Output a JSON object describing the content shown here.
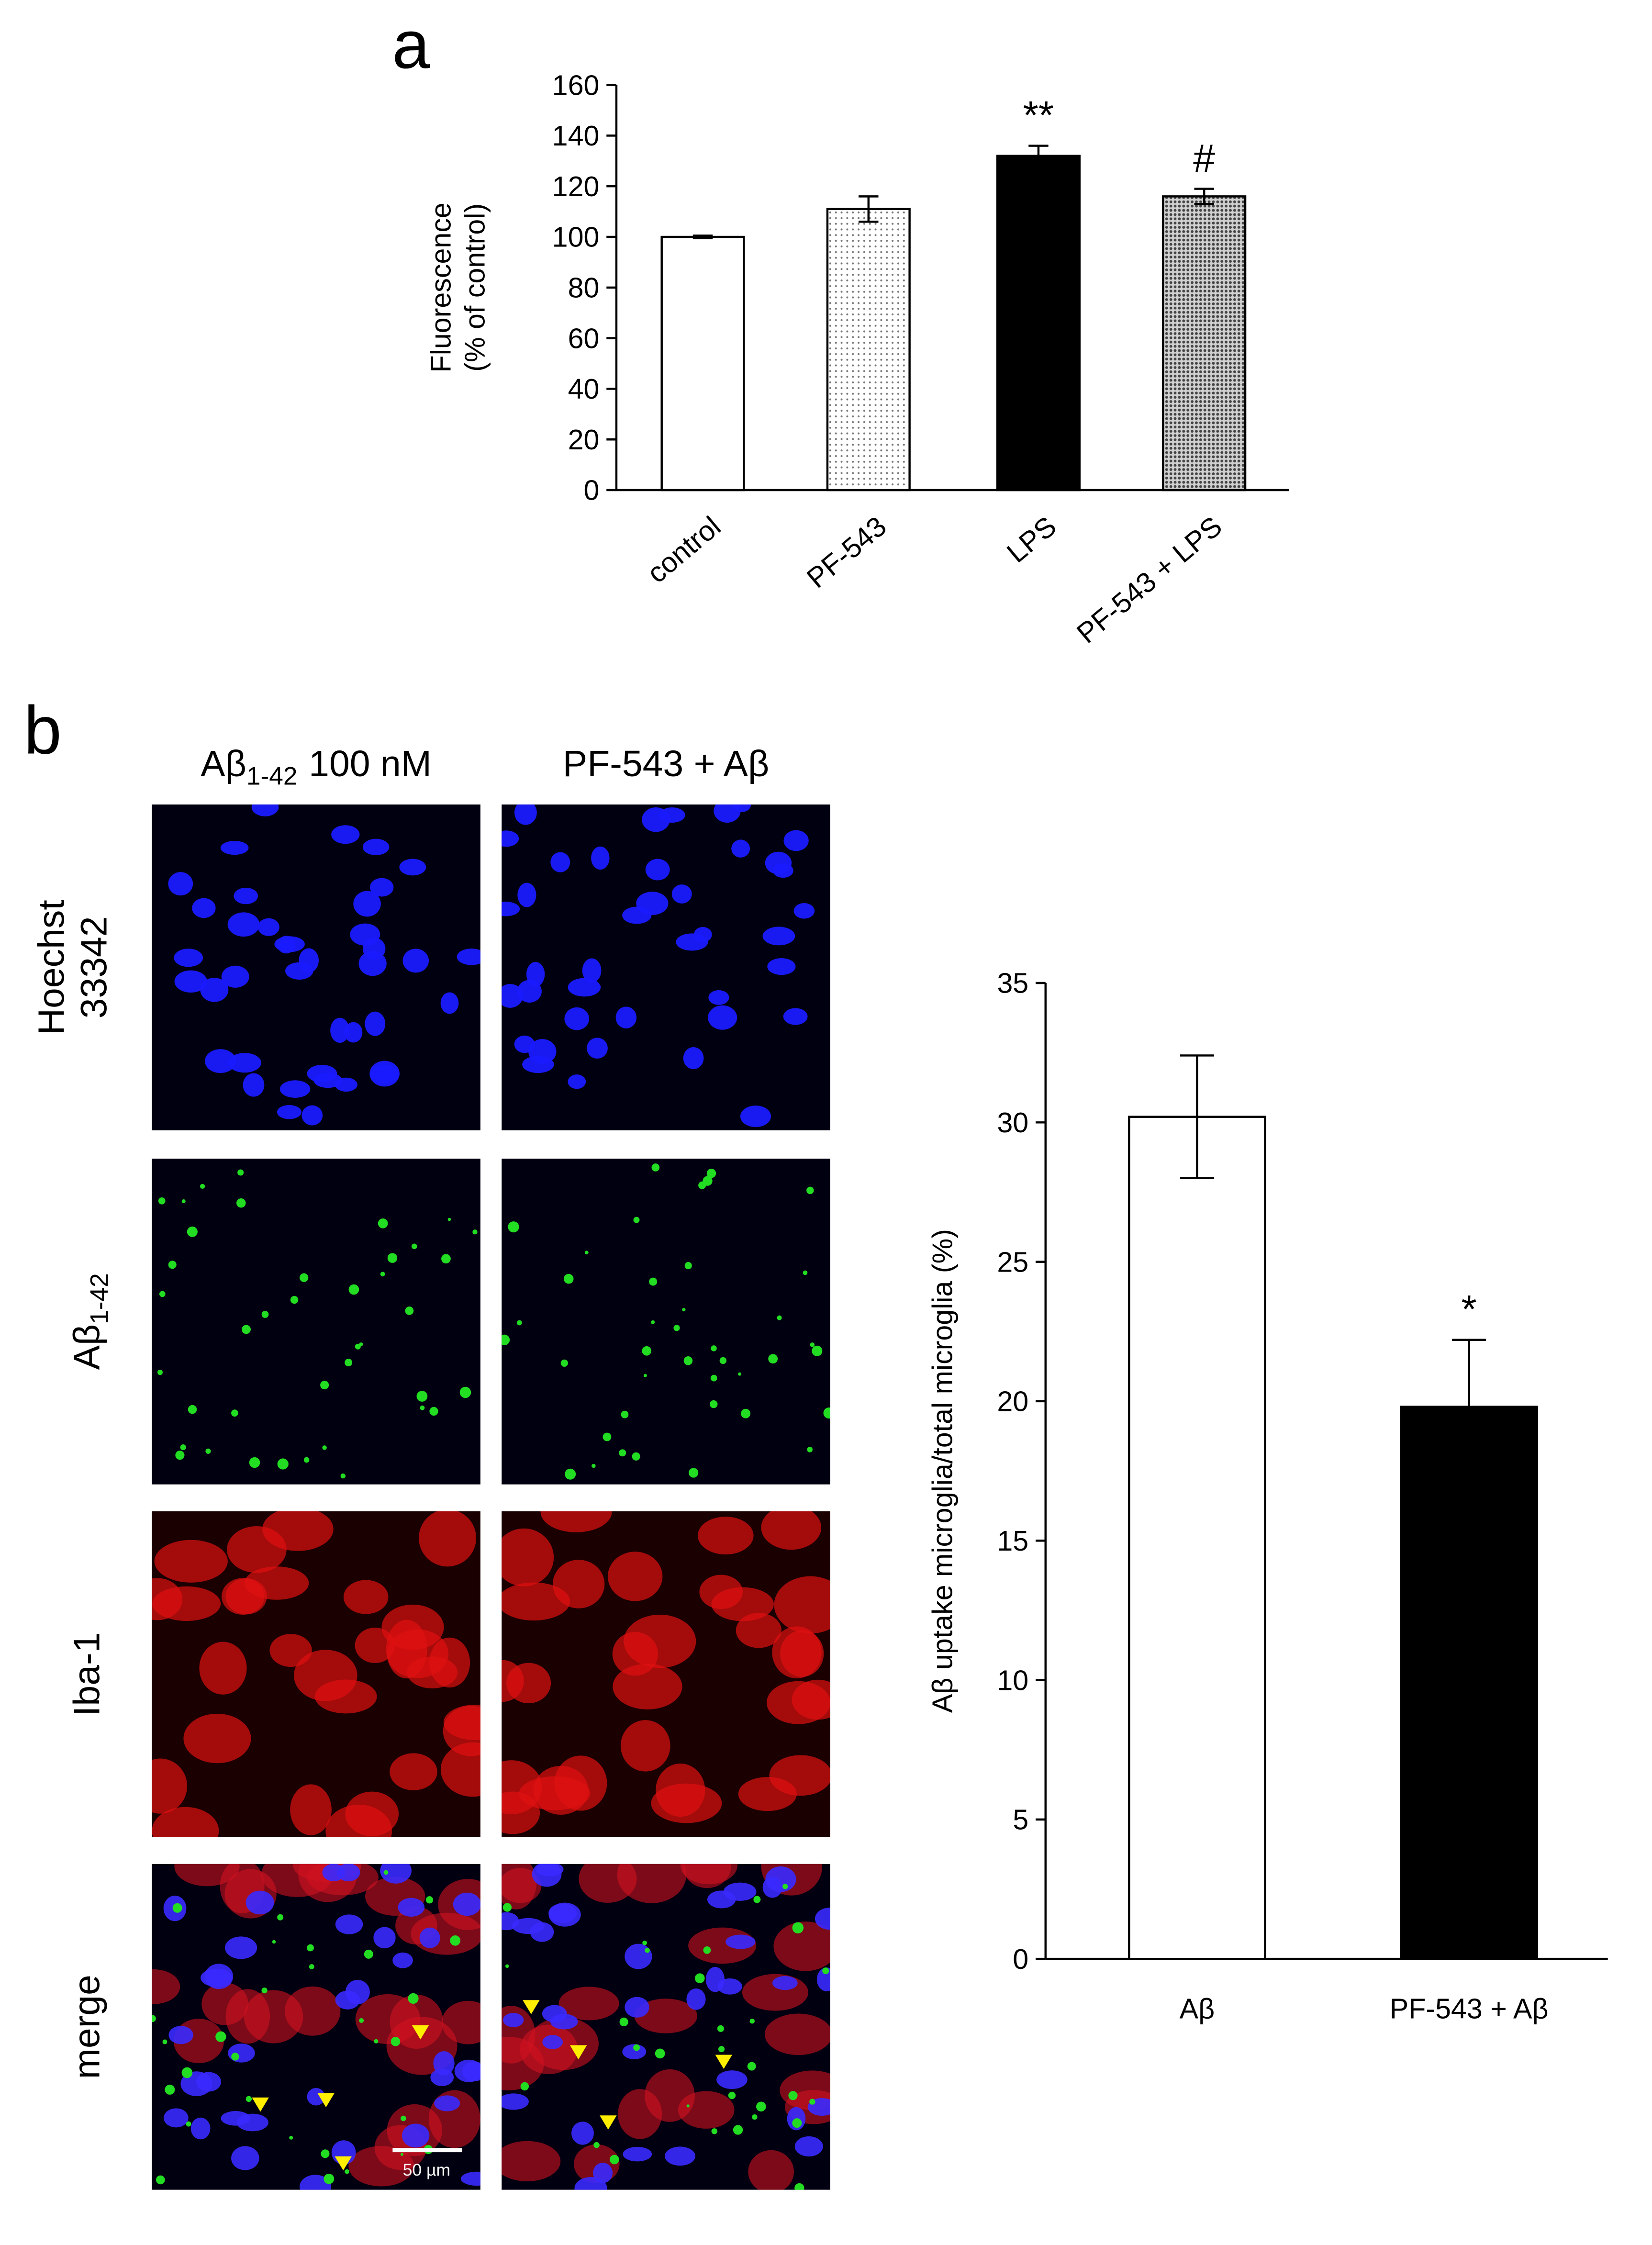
{
  "chart_data": [
    {
      "type": "bar",
      "panel": "a",
      "y_label": [
        "Fluorescence",
        "(% of control)"
      ],
      "categories": [
        "control",
        "PF-543",
        "LPS",
        "PF-543 + LPS"
      ],
      "values": [
        100,
        111,
        132,
        116
      ],
      "errors": [
        0.5,
        5,
        4,
        3
      ],
      "colors": [
        "#ffffff",
        "#f0f0f0",
        "#000000",
        "#a8a8a8"
      ],
      "patterns": [
        "none",
        "dots",
        "none",
        "dense-dots"
      ],
      "significance": [
        null,
        null,
        "**",
        "#"
      ],
      "ylim": [
        0,
        160
      ],
      "yticks": [
        0,
        20,
        40,
        60,
        80,
        100,
        120,
        140,
        160
      ],
      "grid": false
    },
    {
      "type": "bar",
      "panel": "b",
      "y_label": "Aβ uptake microglia/total microglia (%)",
      "categories": [
        "Aβ",
        "PF-543 + Aβ"
      ],
      "values": [
        30.2,
        19.8
      ],
      "errors": [
        2.2,
        2.4
      ],
      "colors": [
        "#ffffff",
        "#000000"
      ],
      "patterns": [
        "none",
        "none"
      ],
      "significance": [
        null,
        "*"
      ],
      "ylim": [
        0,
        35
      ],
      "yticks": [
        0,
        5,
        10,
        15,
        20,
        25,
        30,
        35
      ],
      "grid": false
    }
  ],
  "micrographs": {
    "columns": [
      {
        "main": "Aβ",
        "sub": "1-42",
        "rest": "100 nM"
      },
      {
        "main": "PF-543 + Aβ"
      }
    ],
    "rows": [
      {
        "lines": [
          "Hoechst",
          "33342"
        ]
      },
      {
        "main": "Aβ",
        "sub": "1-42"
      },
      {
        "main": "Iba-1"
      },
      {
        "main": "merge"
      }
    ],
    "scale_bar": "50 µm"
  }
}
